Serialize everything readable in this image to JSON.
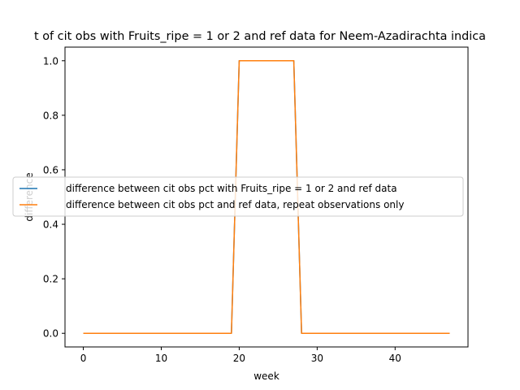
{
  "chart_data": {
    "type": "line",
    "title": "t of cit obs with Fruits_ripe = 1 or 2 and ref data for Neem-Azadirachta indica",
    "xlabel": "week",
    "ylabel": "difference",
    "xlim": [
      -2.35,
      49.35
    ],
    "ylim": [
      -0.05,
      1.05
    ],
    "xticks": [
      0,
      10,
      20,
      30,
      40
    ],
    "xtick_labels": [
      "0",
      "10",
      "20",
      "30",
      "40"
    ],
    "yticks": [
      0.0,
      0.2,
      0.4,
      0.6,
      0.8,
      1.0
    ],
    "ytick_labels": [
      "0.0",
      "0.2",
      "0.4",
      "0.6",
      "0.8",
      "1.0"
    ],
    "grid": false,
    "legend_position": "center-left",
    "x": [
      0,
      1,
      2,
      3,
      4,
      5,
      6,
      7,
      8,
      9,
      10,
      11,
      12,
      13,
      14,
      15,
      16,
      17,
      18,
      19,
      20,
      21,
      22,
      23,
      24,
      25,
      26,
      27,
      28,
      29,
      30,
      31,
      32,
      33,
      34,
      35,
      36,
      37,
      38,
      39,
      40,
      41,
      42,
      43,
      44,
      45,
      46,
      47
    ],
    "series": [
      {
        "name": "difference between cit obs pct with Fruits_ripe = 1 or 2 and ref data",
        "color": "#1f77b4",
        "values": [
          0,
          0,
          0,
          0,
          0,
          0,
          0,
          0,
          0,
          0,
          0,
          0,
          0,
          0,
          0,
          0,
          0,
          0,
          0,
          0,
          1,
          1,
          1,
          1,
          1,
          1,
          1,
          1,
          0,
          0,
          0,
          0,
          0,
          0,
          0,
          0,
          0,
          0,
          0,
          0,
          0,
          0,
          0,
          0,
          0,
          0,
          0,
          0
        ]
      },
      {
        "name": "difference between cit obs pct and ref data, repeat observations only",
        "color": "#ff7f0e",
        "values": [
          0,
          0,
          0,
          0,
          0,
          0,
          0,
          0,
          0,
          0,
          0,
          0,
          0,
          0,
          0,
          0,
          0,
          0,
          0,
          0,
          1,
          1,
          1,
          1,
          1,
          1,
          1,
          1,
          0,
          0,
          0,
          0,
          0,
          0,
          0,
          0,
          0,
          0,
          0,
          0,
          0,
          0,
          0,
          0,
          0,
          0,
          0,
          0
        ]
      }
    ]
  }
}
